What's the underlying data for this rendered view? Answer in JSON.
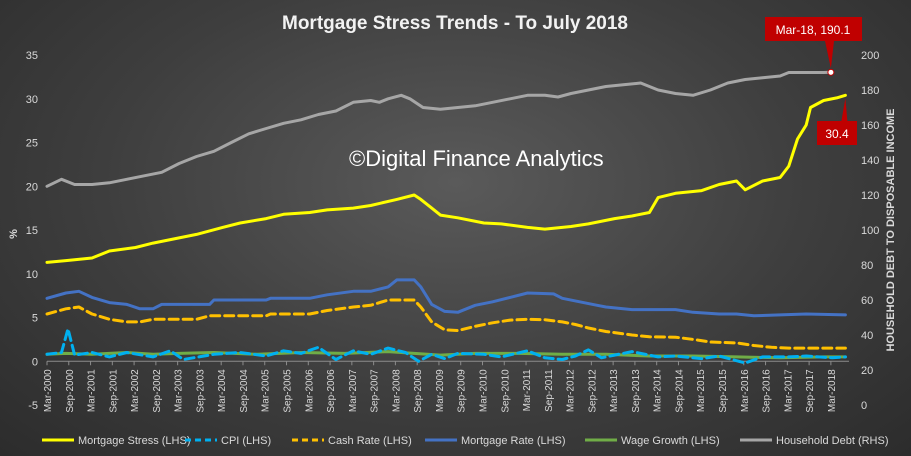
{
  "chart_data": {
    "type": "line",
    "title": "Mortgage Stress Trends - To July 2018",
    "watermark": "©Digital Finance Analytics",
    "ylabel": "%",
    "y2label": "HOUSEHOLD DEBT TO DISPOSABLE INCOME",
    "ylim": [
      -5,
      35
    ],
    "y2lim": [
      0,
      200
    ],
    "yticks": [
      -5,
      0,
      5,
      10,
      15,
      20,
      25,
      30,
      35
    ],
    "y2ticks": [
      0,
      20,
      40,
      60,
      80,
      100,
      120,
      140,
      160,
      180,
      200
    ],
    "x_start": 2000.167,
    "x_end": 2018.583,
    "xticks": [
      {
        "label": "Mar-2000",
        "t": 2000.167
      },
      {
        "label": "Sep-2000",
        "t": 2000.667
      },
      {
        "label": "Mar-2001",
        "t": 2001.167
      },
      {
        "label": "Sep-2001",
        "t": 2001.667
      },
      {
        "label": "Mar-2002",
        "t": 2002.167
      },
      {
        "label": "Sep-2002",
        "t": 2002.667
      },
      {
        "label": "Mar-2003",
        "t": 2003.167
      },
      {
        "label": "Sep-2003",
        "t": 2003.667
      },
      {
        "label": "Mar-2004",
        "t": 2004.167
      },
      {
        "label": "Sep-2004",
        "t": 2004.667
      },
      {
        "label": "Mar-2005",
        "t": 2005.167
      },
      {
        "label": "Sep-2005",
        "t": 2005.667
      },
      {
        "label": "Mar-2006",
        "t": 2006.167
      },
      {
        "label": "Sep-2006",
        "t": 2006.667
      },
      {
        "label": "Mar-2007",
        "t": 2007.167
      },
      {
        "label": "Sep-2007",
        "t": 2007.667
      },
      {
        "label": "Mar-2008",
        "t": 2008.167
      },
      {
        "label": "Sep-2008",
        "t": 2008.667
      },
      {
        "label": "Mar-2009",
        "t": 2009.167
      },
      {
        "label": "Sep-2009",
        "t": 2009.667
      },
      {
        "label": "Mar-2010",
        "t": 2010.167
      },
      {
        "label": "Sep-2010",
        "t": 2010.667
      },
      {
        "label": "Mar-2011",
        "t": 2011.167
      },
      {
        "label": "Sep-2011",
        "t": 2011.667
      },
      {
        "label": "Mar-2012",
        "t": 2012.167
      },
      {
        "label": "Sep-2012",
        "t": 2012.667
      },
      {
        "label": "Mar-2013",
        "t": 2013.167
      },
      {
        "label": "Sep-2013",
        "t": 2013.667
      },
      {
        "label": "Mar-2014",
        "t": 2014.167
      },
      {
        "label": "Sep-2014",
        "t": 2014.667
      },
      {
        "label": "Mar-2015",
        "t": 2015.167
      },
      {
        "label": "Sep-2015",
        "t": 2015.667
      },
      {
        "label": "Mar-2016",
        "t": 2016.167
      },
      {
        "label": "Sep-2016",
        "t": 2016.667
      },
      {
        "label": "Mar-2017",
        "t": 2017.167
      },
      {
        "label": "Sep-2017",
        "t": 2017.667
      },
      {
        "label": "Mar-2018",
        "t": 2018.167
      }
    ],
    "series": [
      {
        "name": "Mortgage Stress (LHS)",
        "color": "#ffff00",
        "dash": "solid",
        "axis": "left",
        "points": [
          [
            2000.167,
            11.3
          ],
          [
            2000.6,
            11.5
          ],
          [
            2001.2,
            11.8
          ],
          [
            2001.6,
            12.6
          ],
          [
            2002.2,
            13.0
          ],
          [
            2002.6,
            13.5
          ],
          [
            2003.2,
            14.1
          ],
          [
            2003.6,
            14.5
          ],
          [
            2004.2,
            15.3
          ],
          [
            2004.6,
            15.8
          ],
          [
            2005.2,
            16.3
          ],
          [
            2005.6,
            16.8
          ],
          [
            2006.2,
            17.0
          ],
          [
            2006.6,
            17.3
          ],
          [
            2007.2,
            17.5
          ],
          [
            2007.6,
            17.8
          ],
          [
            2008.2,
            18.5
          ],
          [
            2008.6,
            19.0
          ],
          [
            2008.75,
            18.5
          ],
          [
            2009.0,
            17.5
          ],
          [
            2009.2,
            16.7
          ],
          [
            2009.6,
            16.4
          ],
          [
            2010.2,
            15.8
          ],
          [
            2010.6,
            15.7
          ],
          [
            2011.2,
            15.3
          ],
          [
            2011.6,
            15.1
          ],
          [
            2012.2,
            15.4
          ],
          [
            2012.6,
            15.7
          ],
          [
            2013.2,
            16.3
          ],
          [
            2013.6,
            16.6
          ],
          [
            2014.0,
            17.0
          ],
          [
            2014.2,
            18.7
          ],
          [
            2014.6,
            19.2
          ],
          [
            2015.2,
            19.5
          ],
          [
            2015.6,
            20.2
          ],
          [
            2016.0,
            20.6
          ],
          [
            2016.2,
            19.6
          ],
          [
            2016.6,
            20.6
          ],
          [
            2017.0,
            21.0
          ],
          [
            2017.2,
            22.3
          ],
          [
            2017.4,
            25.4
          ],
          [
            2017.6,
            27.0
          ],
          [
            2017.7,
            29.0
          ],
          [
            2018.0,
            29.8
          ],
          [
            2018.3,
            30.1
          ],
          [
            2018.5,
            30.4
          ]
        ]
      },
      {
        "name": "CPI (LHS)",
        "color": "#00b0f0",
        "dash": "dashed",
        "axis": "left",
        "points": [
          [
            2000.167,
            0.8
          ],
          [
            2000.5,
            1.0
          ],
          [
            2000.65,
            3.7
          ],
          [
            2000.8,
            0.7
          ],
          [
            2001.2,
            1.0
          ],
          [
            2001.6,
            0.5
          ],
          [
            2002.0,
            1.0
          ],
          [
            2002.6,
            0.5
          ],
          [
            2003.0,
            1.2
          ],
          [
            2003.3,
            0.2
          ],
          [
            2004.0,
            0.8
          ],
          [
            2004.6,
            1.0
          ],
          [
            2005.2,
            0.6
          ],
          [
            2005.6,
            1.2
          ],
          [
            2006.0,
            0.9
          ],
          [
            2006.4,
            1.6
          ],
          [
            2006.8,
            0.2
          ],
          [
            2007.2,
            1.2
          ],
          [
            2007.6,
            0.8
          ],
          [
            2008.0,
            1.5
          ],
          [
            2008.4,
            1.0
          ],
          [
            2008.7,
            0.0
          ],
          [
            2009.0,
            0.8
          ],
          [
            2009.3,
            0.3
          ],
          [
            2009.6,
            0.9
          ],
          [
            2010.2,
            0.8
          ],
          [
            2010.6,
            0.5
          ],
          [
            2011.2,
            1.2
          ],
          [
            2011.6,
            0.4
          ],
          [
            2012.0,
            0.2
          ],
          [
            2012.3,
            0.6
          ],
          [
            2012.6,
            1.3
          ],
          [
            2012.9,
            0.4
          ],
          [
            2013.2,
            0.7
          ],
          [
            2013.6,
            1.1
          ],
          [
            2014.2,
            0.5
          ],
          [
            2014.6,
            0.6
          ],
          [
            2015.2,
            0.3
          ],
          [
            2015.6,
            0.6
          ],
          [
            2016.2,
            -0.2
          ],
          [
            2016.6,
            0.5
          ],
          [
            2017.2,
            0.5
          ],
          [
            2017.6,
            0.6
          ],
          [
            2018.2,
            0.4
          ],
          [
            2018.5,
            0.5
          ]
        ]
      },
      {
        "name": "Cash Rate (LHS)",
        "color": "#ffc000",
        "dash": "dashed",
        "axis": "left",
        "points": [
          [
            2000.167,
            5.4
          ],
          [
            2000.6,
            6.0
          ],
          [
            2000.9,
            6.2
          ],
          [
            2001.2,
            5.4
          ],
          [
            2001.6,
            4.8
          ],
          [
            2002.0,
            4.5
          ],
          [
            2002.3,
            4.5
          ],
          [
            2002.6,
            4.8
          ],
          [
            2003.6,
            4.8
          ],
          [
            2003.9,
            5.2
          ],
          [
            2005.2,
            5.2
          ],
          [
            2005.3,
            5.4
          ],
          [
            2006.2,
            5.4
          ],
          [
            2006.6,
            5.8
          ],
          [
            2007.2,
            6.2
          ],
          [
            2007.6,
            6.4
          ],
          [
            2008.0,
            7.0
          ],
          [
            2008.6,
            7.0
          ],
          [
            2008.75,
            6.2
          ],
          [
            2009.0,
            4.5
          ],
          [
            2009.3,
            3.6
          ],
          [
            2009.6,
            3.5
          ],
          [
            2010.0,
            4.0
          ],
          [
            2010.4,
            4.4
          ],
          [
            2010.8,
            4.7
          ],
          [
            2011.2,
            4.8
          ],
          [
            2011.6,
            4.75
          ],
          [
            2012.0,
            4.5
          ],
          [
            2012.3,
            4.2
          ],
          [
            2012.6,
            3.8
          ],
          [
            2013.0,
            3.4
          ],
          [
            2013.6,
            3.0
          ],
          [
            2014.0,
            2.8
          ],
          [
            2014.6,
            2.75
          ],
          [
            2015.0,
            2.5
          ],
          [
            2015.4,
            2.2
          ],
          [
            2016.0,
            2.1
          ],
          [
            2016.4,
            1.8
          ],
          [
            2016.8,
            1.6
          ],
          [
            2017.2,
            1.5
          ],
          [
            2018.5,
            1.5
          ]
        ]
      },
      {
        "name": "Mortgage Rate (LHS)",
        "color": "#4472c4",
        "dash": "solid",
        "axis": "left",
        "points": [
          [
            2000.167,
            7.2
          ],
          [
            2000.6,
            7.8
          ],
          [
            2000.9,
            8.0
          ],
          [
            2001.2,
            7.3
          ],
          [
            2001.6,
            6.7
          ],
          [
            2002.0,
            6.5
          ],
          [
            2002.3,
            6.0
          ],
          [
            2002.6,
            6.0
          ],
          [
            2002.8,
            6.5
          ],
          [
            2003.9,
            6.5
          ],
          [
            2004.0,
            7.0
          ],
          [
            2005.2,
            7.0
          ],
          [
            2005.3,
            7.2
          ],
          [
            2006.2,
            7.2
          ],
          [
            2006.6,
            7.6
          ],
          [
            2007.2,
            8.0
          ],
          [
            2007.6,
            8.0
          ],
          [
            2008.0,
            8.5
          ],
          [
            2008.2,
            9.3
          ],
          [
            2008.6,
            9.3
          ],
          [
            2008.75,
            8.5
          ],
          [
            2009.0,
            6.5
          ],
          [
            2009.3,
            5.7
          ],
          [
            2009.6,
            5.6
          ],
          [
            2010.0,
            6.4
          ],
          [
            2010.4,
            6.8
          ],
          [
            2010.8,
            7.3
          ],
          [
            2011.2,
            7.8
          ],
          [
            2011.8,
            7.7
          ],
          [
            2012.0,
            7.2
          ],
          [
            2012.4,
            6.8
          ],
          [
            2012.8,
            6.4
          ],
          [
            2013.0,
            6.2
          ],
          [
            2013.6,
            5.9
          ],
          [
            2014.6,
            5.9
          ],
          [
            2015.0,
            5.6
          ],
          [
            2015.6,
            5.4
          ],
          [
            2016.0,
            5.4
          ],
          [
            2016.4,
            5.2
          ],
          [
            2017.0,
            5.3
          ],
          [
            2017.6,
            5.4
          ],
          [
            2018.5,
            5.3
          ]
        ]
      },
      {
        "name": "Wage Growth (LHS)",
        "color": "#70ad47",
        "dash": "solid",
        "axis": "left",
        "points": [
          [
            2000.167,
            0.8
          ],
          [
            2000.6,
            0.9
          ],
          [
            2001.2,
            0.8
          ],
          [
            2002.0,
            1.0
          ],
          [
            2002.6,
            0.8
          ],
          [
            2003.2,
            0.9
          ],
          [
            2004.0,
            1.0
          ],
          [
            2005.0,
            0.8
          ],
          [
            2006.0,
            1.0
          ],
          [
            2007.0,
            0.9
          ],
          [
            2008.0,
            1.1
          ],
          [
            2008.6,
            0.9
          ],
          [
            2009.2,
            0.7
          ],
          [
            2010.0,
            0.9
          ],
          [
            2011.0,
            0.9
          ],
          [
            2012.0,
            0.8
          ],
          [
            2013.0,
            0.8
          ],
          [
            2014.0,
            0.6
          ],
          [
            2015.0,
            0.6
          ],
          [
            2016.0,
            0.5
          ],
          [
            2017.0,
            0.4
          ],
          [
            2018.0,
            0.5
          ],
          [
            2018.5,
            0.5
          ]
        ]
      },
      {
        "name": "Household Debt (RHS)",
        "color": "#a6a6a6",
        "dash": "solid",
        "axis": "right",
        "points": [
          [
            2000.167,
            125
          ],
          [
            2000.5,
            129
          ],
          [
            2000.8,
            126
          ],
          [
            2001.2,
            126
          ],
          [
            2001.6,
            127
          ],
          [
            2002.0,
            129
          ],
          [
            2002.4,
            131
          ],
          [
            2002.8,
            133
          ],
          [
            2003.2,
            138
          ],
          [
            2003.6,
            142
          ],
          [
            2004.0,
            145
          ],
          [
            2004.4,
            150
          ],
          [
            2004.8,
            155
          ],
          [
            2005.2,
            158
          ],
          [
            2005.6,
            161
          ],
          [
            2006.0,
            163
          ],
          [
            2006.4,
            166
          ],
          [
            2006.8,
            168
          ],
          [
            2007.2,
            173
          ],
          [
            2007.6,
            174
          ],
          [
            2007.8,
            173
          ],
          [
            2008.0,
            175
          ],
          [
            2008.3,
            177
          ],
          [
            2008.5,
            175
          ],
          [
            2008.8,
            170
          ],
          [
            2009.2,
            169
          ],
          [
            2009.6,
            170
          ],
          [
            2010.0,
            171
          ],
          [
            2010.4,
            173
          ],
          [
            2010.8,
            175
          ],
          [
            2011.2,
            177
          ],
          [
            2011.6,
            177
          ],
          [
            2011.9,
            176
          ],
          [
            2012.2,
            178
          ],
          [
            2012.6,
            180
          ],
          [
            2013.0,
            182
          ],
          [
            2013.4,
            183
          ],
          [
            2013.8,
            184
          ],
          [
            2014.2,
            180
          ],
          [
            2014.6,
            178
          ],
          [
            2015.0,
            177
          ],
          [
            2015.4,
            180
          ],
          [
            2015.8,
            184
          ],
          [
            2016.2,
            186
          ],
          [
            2016.6,
            187
          ],
          [
            2017.0,
            188
          ],
          [
            2017.2,
            190
          ],
          [
            2017.6,
            190
          ],
          [
            2018.0,
            190
          ],
          [
            2018.167,
            190.1
          ]
        ]
      }
    ],
    "annotations": [
      {
        "label": "Mar-18, 190.1",
        "series": "Household Debt (RHS)",
        "t": 2018.167
      },
      {
        "label": "30.4",
        "series": "Mortgage Stress (LHS)",
        "t": 2018.5
      }
    ],
    "legend_position": "bottom",
    "grid": false
  }
}
